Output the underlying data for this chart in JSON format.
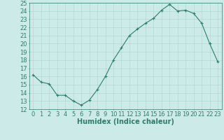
{
  "x": [
    0,
    1,
    2,
    3,
    4,
    5,
    6,
    7,
    8,
    9,
    10,
    11,
    12,
    13,
    14,
    15,
    16,
    17,
    18,
    19,
    20,
    21,
    22,
    23
  ],
  "y": [
    16.2,
    15.3,
    15.1,
    13.7,
    13.7,
    13.0,
    12.5,
    13.1,
    14.4,
    16.0,
    18.0,
    19.5,
    21.0,
    21.8,
    22.5,
    23.1,
    24.1,
    24.8,
    24.0,
    24.1,
    23.7,
    22.5,
    20.0,
    17.8
  ],
  "line_color": "#2e7d6e",
  "marker": "+",
  "marker_size": 3,
  "marker_linewidth": 0.8,
  "bg_color": "#cceae7",
  "grid_color": "#b0d8d5",
  "xlabel": "Humidex (Indice chaleur)",
  "xlim": [
    -0.5,
    23.5
  ],
  "ylim": [
    12,
    25
  ],
  "yticks": [
    12,
    13,
    14,
    15,
    16,
    17,
    18,
    19,
    20,
    21,
    22,
    23,
    24,
    25
  ],
  "xticks": [
    0,
    1,
    2,
    3,
    4,
    5,
    6,
    7,
    8,
    9,
    10,
    11,
    12,
    13,
    14,
    15,
    16,
    17,
    18,
    19,
    20,
    21,
    22,
    23
  ],
  "tick_color": "#2e7d6e",
  "label_color": "#2e7d6e",
  "font_size_xlabel": 7,
  "font_size_ticks": 6,
  "line_width": 0.8
}
